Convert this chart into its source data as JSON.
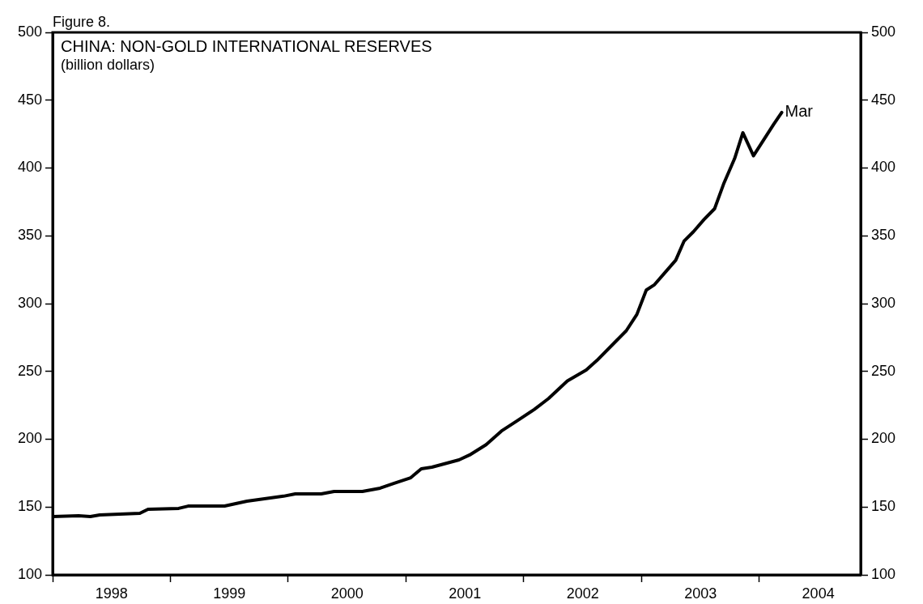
{
  "chart_data": {
    "type": "line",
    "title": "CHINA: NON-GOLD INTERNATIONAL RESERVES",
    "subtitle": "(billion dollars)",
    "series": [
      {
        "color": "#000000",
        "x": [
          1998.0,
          1998.22,
          1998.32,
          1998.4,
          1998.74,
          1998.81,
          1999.07,
          1999.15,
          1999.46,
          1999.65,
          1999.96,
          2000.06,
          2000.28,
          2000.39,
          2000.63,
          2000.78,
          2000.9,
          2001.04,
          2001.13,
          2001.22,
          2001.45,
          2001.54,
          2001.68,
          2001.81,
          2001.95,
          2002.09,
          2002.21,
          2002.37,
          2002.53,
          2002.62,
          2002.79,
          2002.87,
          2002.96,
          2003.04,
          2003.11,
          2003.19,
          2003.29,
          2003.36,
          2003.44,
          2003.53,
          2003.62,
          2003.7,
          2003.79,
          2003.86,
          2003.95,
          2004.12,
          2004.19
        ],
        "values": [
          143,
          143.6,
          143,
          144.2,
          145.4,
          148.4,
          149,
          150.7,
          150.7,
          154.3,
          158,
          159.7,
          159.7,
          161.5,
          161.5,
          163.9,
          167.5,
          171.6,
          178.2,
          179.4,
          184.8,
          188.4,
          196,
          206,
          214,
          222,
          230,
          243,
          251,
          258,
          273,
          280,
          292,
          310,
          314,
          322,
          332,
          346,
          353,
          362,
          370,
          389,
          407,
          426,
          409,
          432,
          441
        ]
      }
    ],
    "xlim": [
      1998,
      2004.86
    ],
    "xticks": [
      {
        "value": 1998,
        "label": null
      },
      {
        "value": 1998.5,
        "label": "1998"
      },
      {
        "value": 1999,
        "label": null
      },
      {
        "value": 1999.5,
        "label": "1999"
      },
      {
        "value": 2000,
        "label": null
      },
      {
        "value": 2000.5,
        "label": "2000"
      },
      {
        "value": 2001,
        "label": null
      },
      {
        "value": 2001.5,
        "label": "2001"
      },
      {
        "value": 2002,
        "label": null
      },
      {
        "value": 2002.5,
        "label": "2002"
      },
      {
        "value": 2003,
        "label": null
      },
      {
        "value": 2003.5,
        "label": "2003"
      },
      {
        "value": 2004,
        "label": null
      },
      {
        "value": 2004.5,
        "label": "2004"
      }
    ],
    "ylim": [
      100,
      500
    ],
    "yticks": [
      100,
      150,
      200,
      250,
      300,
      350,
      400,
      450,
      500
    ],
    "y2lim": [
      100,
      500
    ],
    "y2ticks": [
      100,
      150,
      200,
      250,
      300,
      350,
      400,
      450,
      500
    ],
    "annotations": [
      "Figure 8.",
      {
        "text": "Mar",
        "x": 2004.19,
        "y": 441
      }
    ]
  }
}
